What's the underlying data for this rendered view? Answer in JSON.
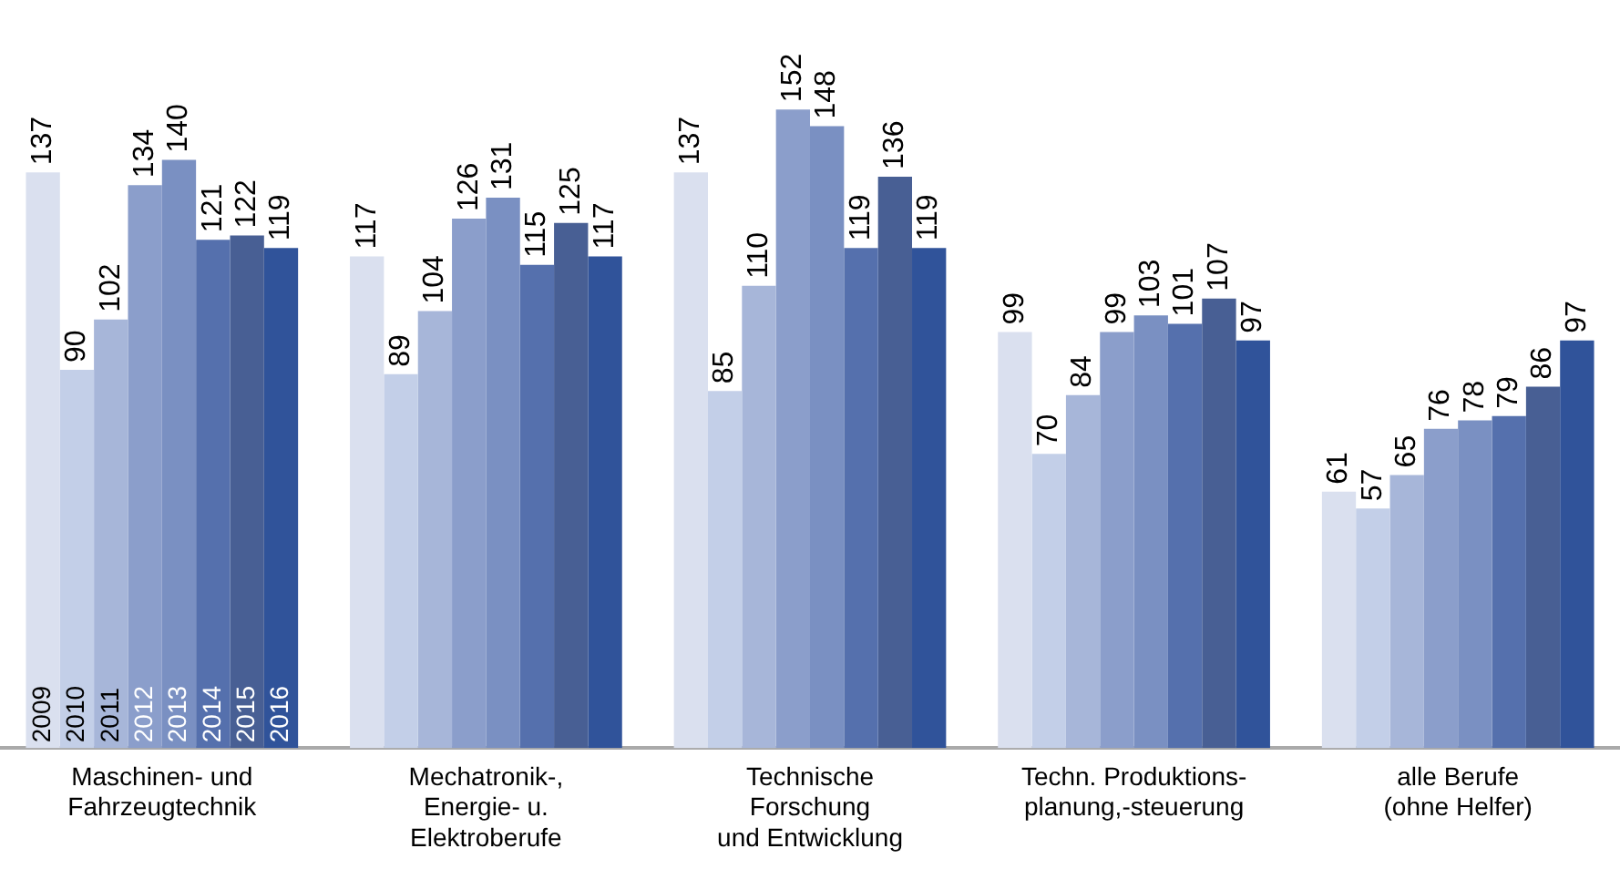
{
  "chart_data": {
    "type": "bar",
    "categories": [
      "Maschinen- und\nFahrzeugtechnik",
      "Mechatronik-,\nEnergie- u.\nElektroberufe",
      "Technische\nForschung\nund Entwicklung",
      "Techn. Produktions-\nplanung,-steuerung",
      "alle Berufe\n(ohne Helfer)"
    ],
    "series": [
      {
        "name": "2009",
        "color": "#dae0ef",
        "values": [
          137,
          117,
          137,
          99,
          61
        ]
      },
      {
        "name": "2010",
        "color": "#c3cfe8",
        "values": [
          90,
          89,
          85,
          70,
          57
        ]
      },
      {
        "name": "2011",
        "color": "#a7b6d9",
        "values": [
          102,
          104,
          110,
          84,
          65
        ]
      },
      {
        "name": "2012",
        "color": "#8b9ecb",
        "values": [
          134,
          126,
          152,
          99,
          76
        ]
      },
      {
        "name": "2013",
        "color": "#7a90c2",
        "values": [
          140,
          131,
          148,
          103,
          78
        ]
      },
      {
        "name": "2014",
        "color": "#5570ad",
        "values": [
          121,
          115,
          119,
          101,
          79
        ]
      },
      {
        "name": "2015",
        "color": "#485f94",
        "values": [
          122,
          125,
          136,
          107,
          86
        ]
      },
      {
        "name": "2016",
        "color": "#30539a",
        "values": [
          119,
          117,
          119,
          97,
          97
        ]
      }
    ],
    "data_labels": true,
    "legend": false,
    "grid": false,
    "tick_labels": "x"
  }
}
